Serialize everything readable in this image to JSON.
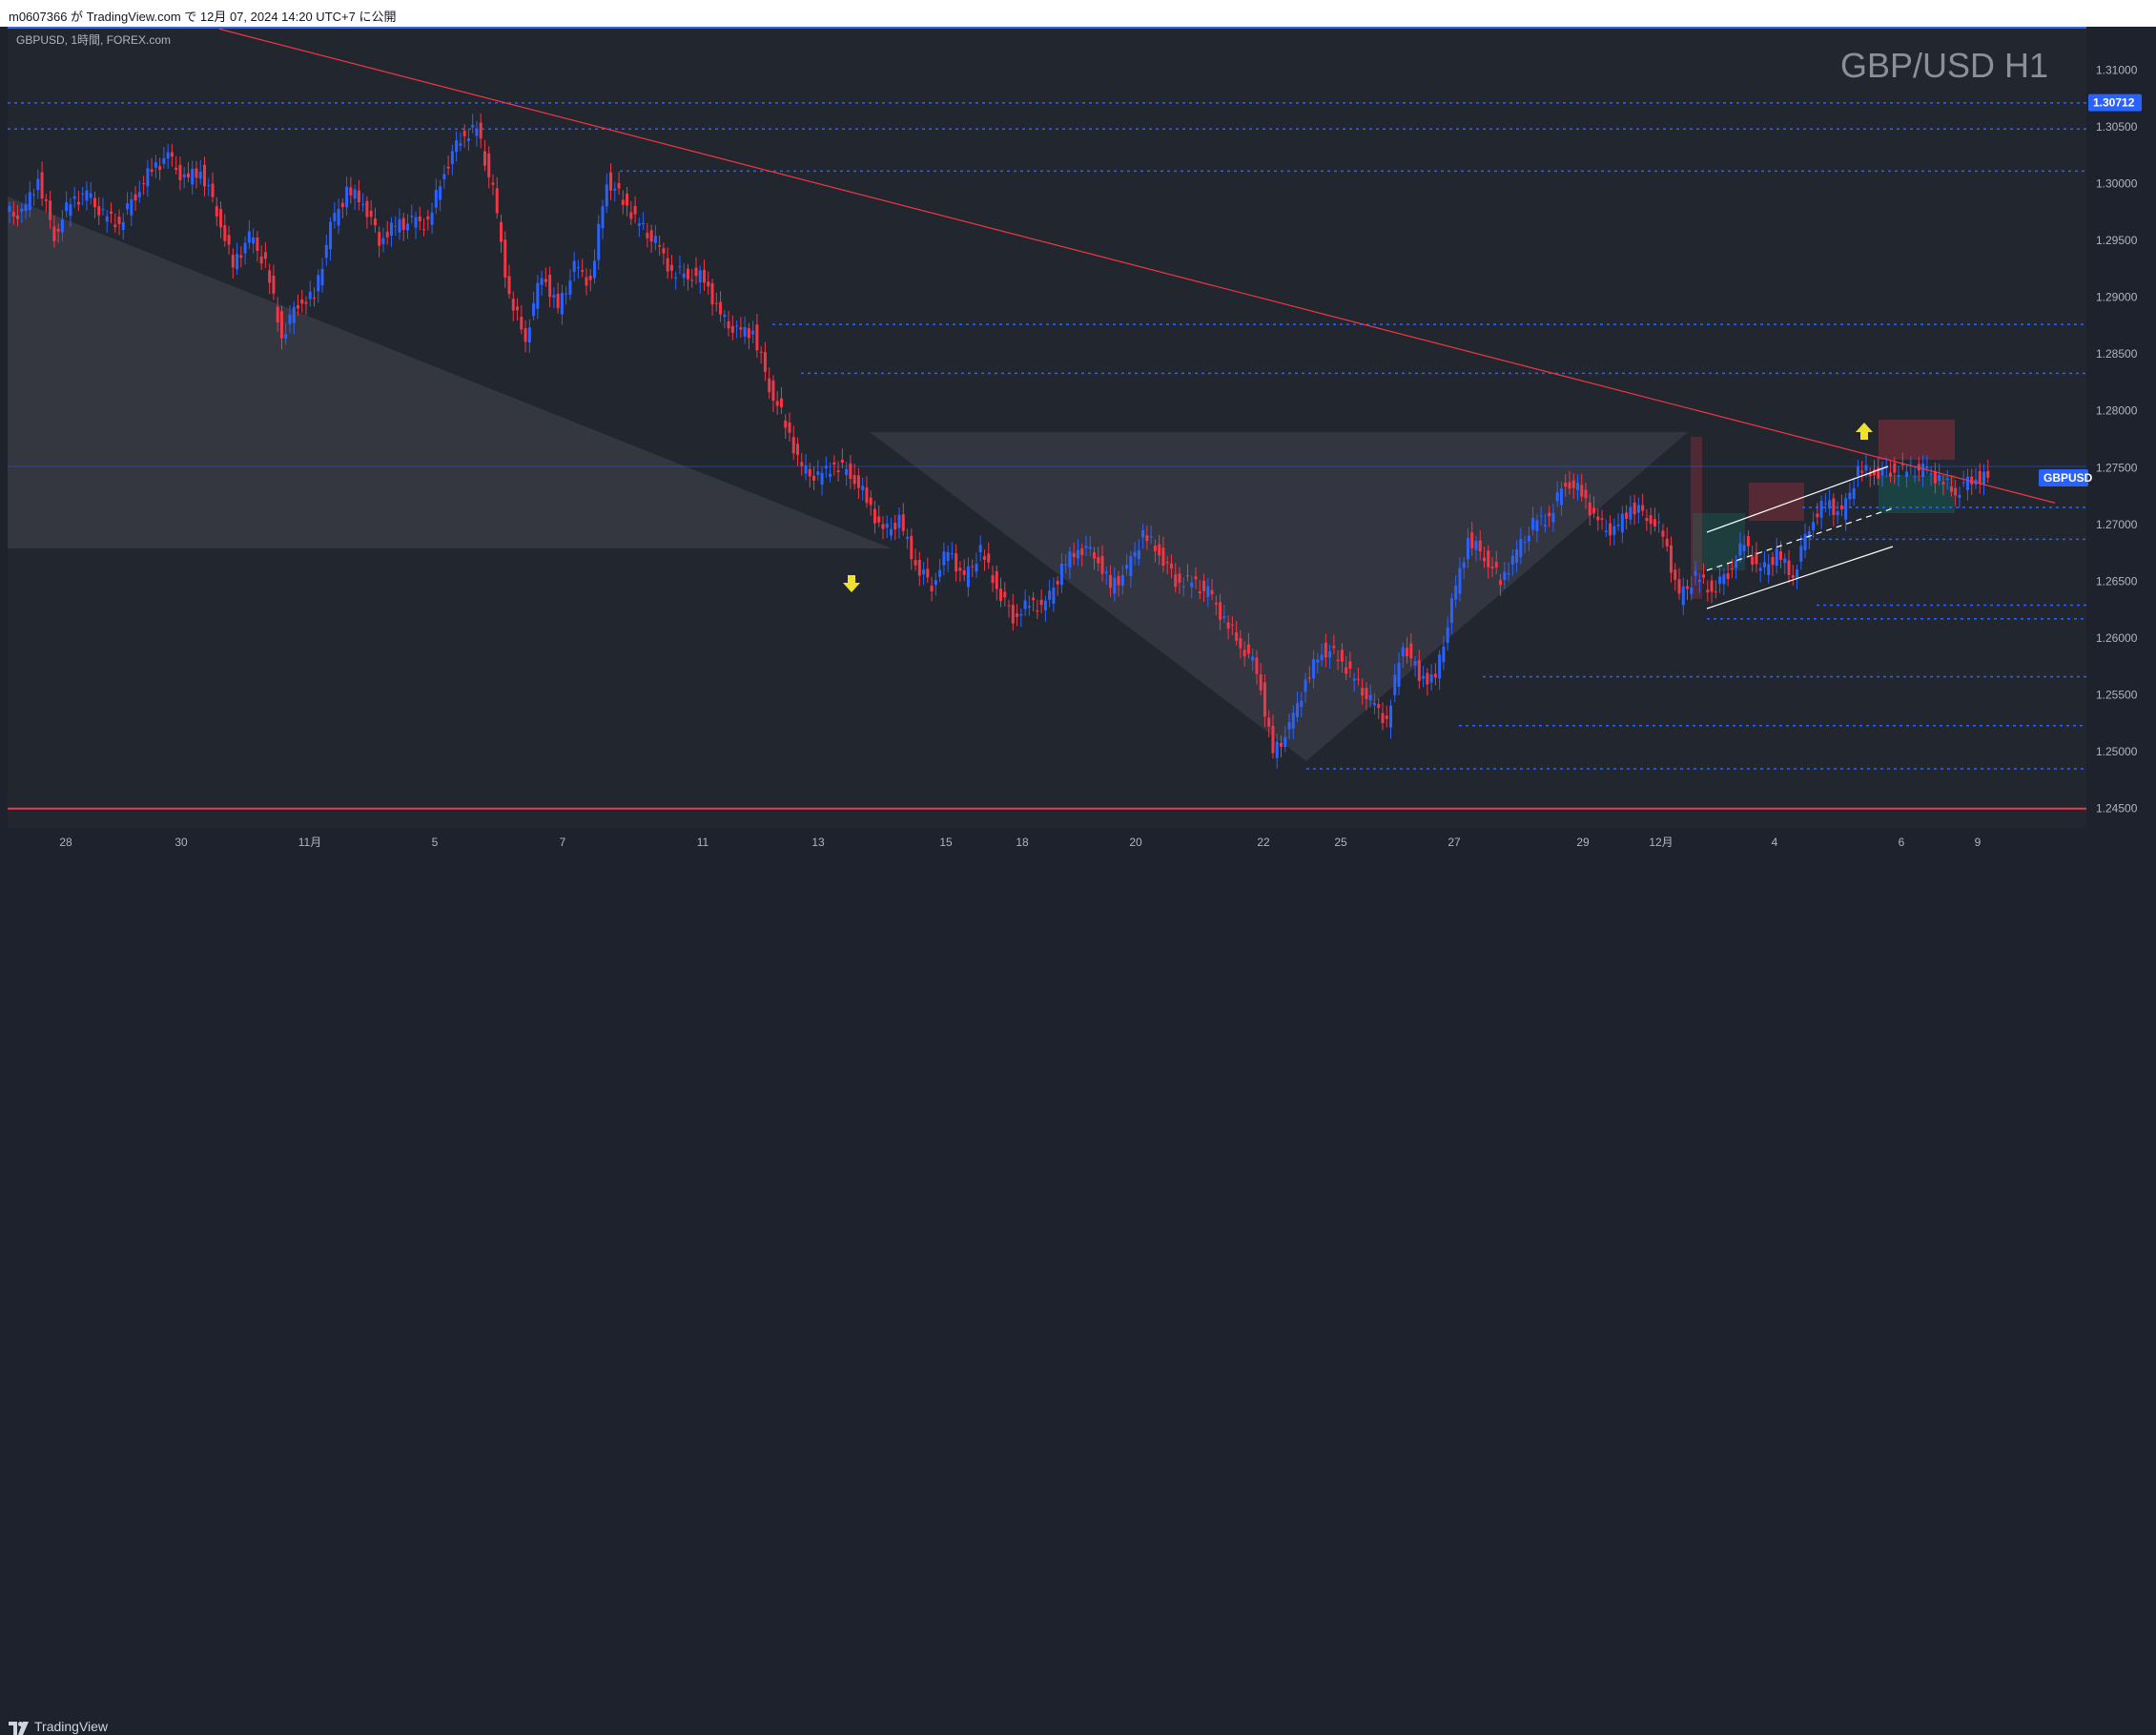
{
  "header": {
    "publish_text": "m0607366 が TradingView.com で 12月 07, 2024 14:20 UTC+7 に公開"
  },
  "footer": {
    "brand": "TradingView"
  },
  "chart_data": {
    "type": "candlestick",
    "title": "GBP/USD H1",
    "symbol_info": "GBPUSD, 1時間, FOREX.com",
    "y_axis_labels": [
      "1.31000",
      "1.30500",
      "1.30000",
      "1.29500",
      "1.29000",
      "1.28500",
      "1.28000",
      "1.27500",
      "1.27000",
      "1.26500",
      "1.26000",
      "1.25500",
      "1.25000",
      "1.24500"
    ],
    "y_axis_values": [
      1.31,
      1.305,
      1.3,
      1.295,
      1.29,
      1.285,
      1.28,
      1.275,
      1.27,
      1.265,
      1.26,
      1.255,
      1.25,
      1.245
    ],
    "ylim": [
      1.2433,
      1.3138
    ],
    "x_axis_labels": [
      "28",
      "30",
      "11月",
      "5",
      "7",
      "11",
      "13",
      "15",
      "18",
      "20",
      "22",
      "25",
      "27",
      "29",
      "12月",
      "4",
      "6",
      "9"
    ],
    "price_badges": [
      {
        "label": "1.30712",
        "value": 1.30712,
        "color": "#2962ff"
      },
      {
        "label": "GBPUSD",
        "value": 1.2741,
        "color": "#2962ff"
      }
    ],
    "horizontal_levels": [
      {
        "value": 1.3071,
        "style": "dotted",
        "color": "#2962ff"
      },
      {
        "value": 1.3048,
        "style": "dotted",
        "color": "#2962ff"
      },
      {
        "value": 1.3011,
        "style": "dotted",
        "color": "#2962ff"
      },
      {
        "value": 1.2876,
        "style": "dotted",
        "color": "#2962ff"
      },
      {
        "value": 1.2833,
        "style": "dotted",
        "color": "#2962ff"
      },
      {
        "value": 1.2715,
        "style": "dotted",
        "color": "#2962ff"
      },
      {
        "value": 1.2687,
        "style": "dotted",
        "color": "#2962ff"
      },
      {
        "value": 1.2629,
        "style": "dotted",
        "color": "#2962ff"
      },
      {
        "value": 1.2617,
        "style": "dotted",
        "color": "#2962ff"
      },
      {
        "value": 1.2566,
        "style": "dotted",
        "color": "#2962ff"
      },
      {
        "value": 1.2523,
        "style": "dotted",
        "color": "#2962ff"
      },
      {
        "value": 1.2485,
        "style": "dotted",
        "color": "#2962ff"
      },
      {
        "value": 1.245,
        "style": "solid",
        "color": "#f23645"
      }
    ],
    "trendline": {
      "from": {
        "date": "Oct 27",
        "price": 1.3136
      },
      "to": {
        "date": "Dec 9",
        "price": 1.2719
      },
      "color": "#f23645"
    },
    "arrows": [
      {
        "direction": "down",
        "color": "#f0e130",
        "date": "Nov 13",
        "price": 1.2647
      },
      {
        "direction": "up",
        "color": "#f0e130",
        "date": "Dec 5",
        "price": 1.2783
      }
    ],
    "price_series": [
      [
        1.2975,
        1.2972,
        1.3004,
        1.2955,
        1.2985,
        1.299,
        1.2972,
        1.2965,
        1.2991,
        1.3013,
        1.3023,
        1.3003,
        1.3012,
        1.2977,
        1.2928,
        1.2953,
        1.2929,
        1.2866,
        1.2896,
        1.29,
        1.2961,
        1.2993,
        1.2985,
        1.2951,
        1.2963,
        1.2966,
        1.2965,
        1.3012,
        1.3041,
        1.3048,
        1.2993,
        1.29,
        1.2865,
        1.2922,
        1.2889,
        1.2926,
        1.2913,
        1.3004,
        1.2986,
        1.2963,
        1.2948,
        1.2922,
        1.2921,
        1.2917,
        1.2882,
        1.2869,
        1.287,
        1.2822,
        1.2789,
        1.2748,
        1.2741,
        1.2753,
        1.2746,
        1.2722,
        1.2692,
        1.2703,
        1.2665,
        1.2647,
        1.2678,
        1.2651,
        1.2677,
        1.2645,
        1.2619,
        1.263,
        1.2628,
        1.2661,
        1.268,
        1.2676,
        1.2645,
        1.2659,
        1.2691,
        1.2676,
        1.2651,
        1.2649,
        1.264,
        1.2616,
        1.2595,
        1.2574,
        1.2498,
        1.252,
        1.2561,
        1.259,
        1.2585,
        1.2563,
        1.2544,
        1.2527,
        1.2597,
        1.2567,
        1.2563,
        1.2629,
        1.2687,
        1.2673,
        1.2651,
        1.2675,
        1.27,
        1.2707,
        1.2739,
        1.2728,
        1.27,
        1.2693,
        1.2716,
        1.2709,
        1.2692,
        1.2635,
        1.2654,
        1.2642,
        1.2658,
        1.2684,
        1.2657,
        1.2674,
        1.2655,
        1.27,
        1.272,
        1.2708,
        1.2747,
        1.2746,
        1.2748,
        1.2747,
        1.2748,
        1.274,
        1.2729,
        1.2741
      ]
    ]
  }
}
